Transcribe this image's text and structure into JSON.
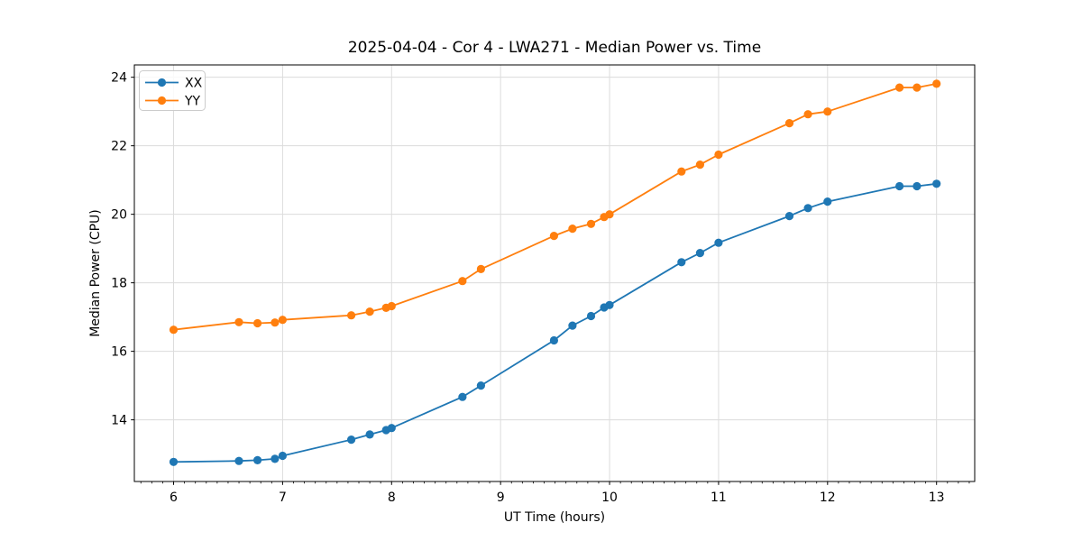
{
  "chart_data": {
    "type": "line",
    "title": "2025-04-04 - Cor 4 - LWA271 - Median Power vs. Time",
    "xlabel": "UT Time (hours)",
    "ylabel": "Median Power (CPU)",
    "xlim": [
      5.64,
      13.35
    ],
    "ylim": [
      12.2,
      24.36
    ],
    "x_ticks": [
      6,
      7,
      8,
      9,
      10,
      11,
      12,
      13
    ],
    "x_tick_labels": [
      "6",
      "7",
      "8",
      "9",
      "10",
      "11",
      "12",
      "13"
    ],
    "x_minor_step": 0.1,
    "y_ticks": [
      14,
      16,
      18,
      20,
      22,
      24
    ],
    "y_tick_labels": [
      "14",
      "16",
      "18",
      "20",
      "22",
      "24"
    ],
    "grid": true,
    "grid_color": "#dcdcdc",
    "legend_position": "upper left",
    "background_color": "#ffffff",
    "series": [
      {
        "name": "XX",
        "color": "#1f77b4",
        "marker": "circle",
        "x": [
          6.0,
          6.6,
          6.77,
          6.93,
          7.0,
          7.63,
          7.8,
          7.95,
          8.0,
          8.65,
          8.82,
          9.49,
          9.66,
          9.83,
          9.95,
          10.0,
          10.66,
          10.83,
          11.0,
          11.65,
          11.82,
          12.0,
          12.66,
          12.82,
          13.0
        ],
        "y": [
          12.77,
          12.8,
          12.82,
          12.86,
          12.95,
          13.42,
          13.57,
          13.7,
          13.76,
          14.67,
          15.0,
          16.32,
          16.75,
          17.03,
          17.28,
          17.35,
          18.6,
          18.87,
          19.17,
          19.95,
          20.18,
          20.37,
          20.82,
          20.82,
          20.89
        ]
      },
      {
        "name": "YY",
        "color": "#ff7f0e",
        "marker": "circle",
        "x": [
          6.0,
          6.6,
          6.77,
          6.93,
          7.0,
          7.63,
          7.8,
          7.95,
          8.0,
          8.65,
          8.82,
          9.49,
          9.66,
          9.83,
          9.95,
          10.0,
          10.66,
          10.83,
          11.0,
          11.65,
          11.82,
          12.0,
          12.66,
          12.82,
          13.0
        ],
        "y": [
          16.63,
          16.85,
          16.82,
          16.84,
          16.92,
          17.05,
          17.16,
          17.27,
          17.32,
          18.05,
          18.4,
          19.37,
          19.58,
          19.72,
          19.92,
          20.0,
          21.25,
          21.45,
          21.74,
          22.66,
          22.92,
          23.0,
          23.7,
          23.7,
          23.81
        ]
      }
    ]
  }
}
